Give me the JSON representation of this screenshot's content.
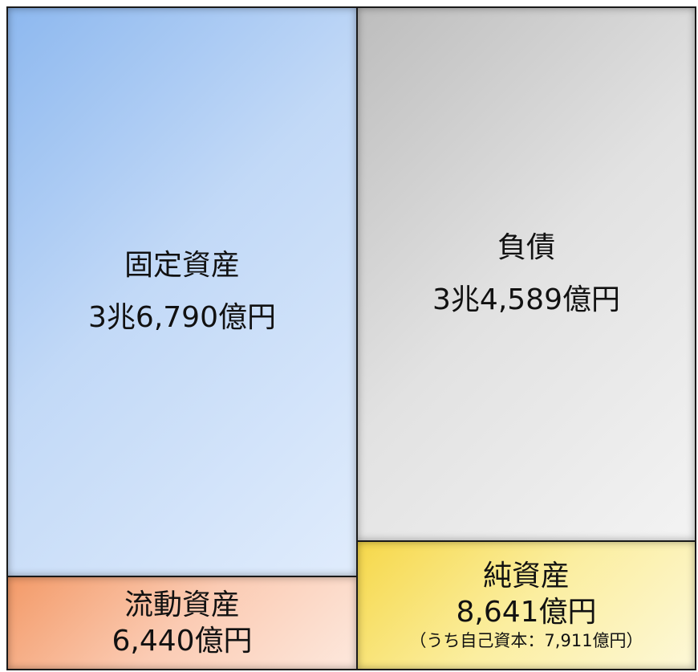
{
  "blocks": [
    {
      "label": "固定資産",
      "amount": "3兆6,790億円"
    },
    {
      "label": "流動資産",
      "amount": "6,440億円"
    },
    {
      "label": "負債",
      "amount": "3兆4,589億円"
    },
    {
      "label": "純資産",
      "amount": "8,641億円",
      "note": "（うち自己資本：7,911億円）"
    }
  ]
}
